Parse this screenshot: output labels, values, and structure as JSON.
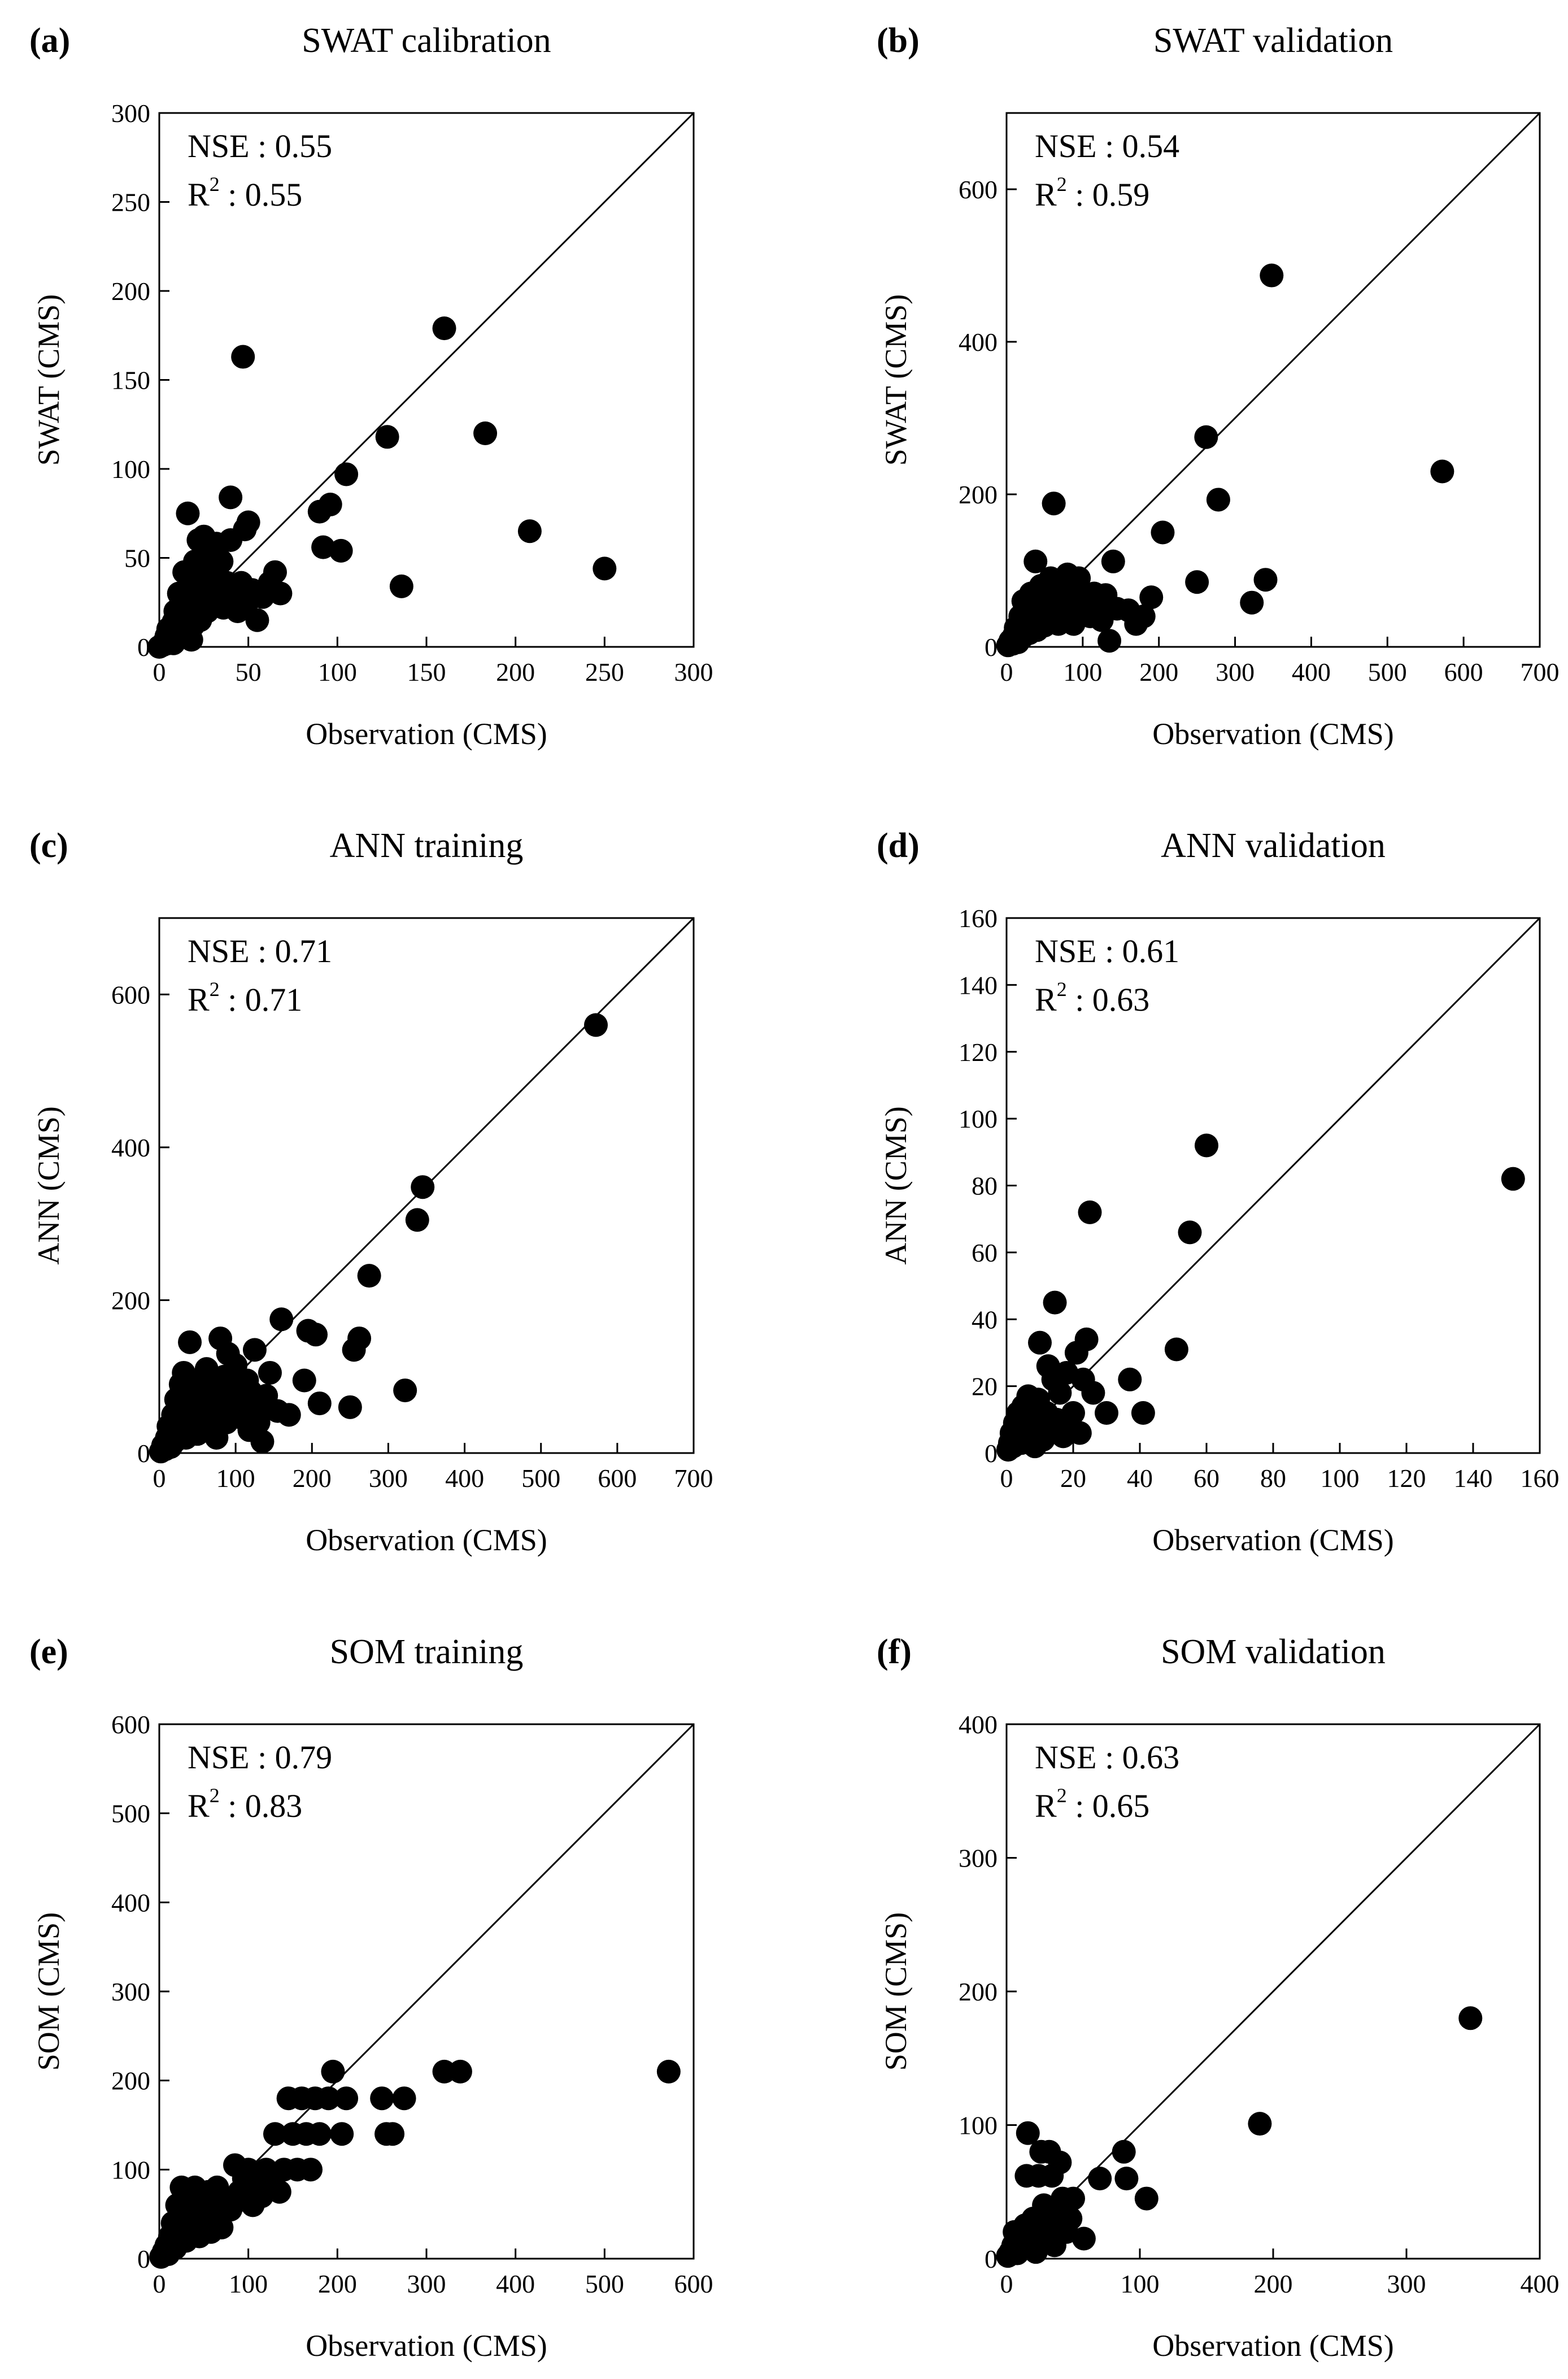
{
  "chart_data": [
    {
      "type": "scatter",
      "panel": "(a)",
      "title": "SWAT calibration",
      "xlabel": "Observation (CMS)",
      "ylabel": "SWAT (CMS)",
      "xlim": [
        0,
        300
      ],
      "ylim": [
        0,
        300
      ],
      "xticks": [
        0,
        50,
        100,
        150,
        200,
        250,
        300
      ],
      "yticks": [
        0,
        50,
        100,
        150,
        200,
        250,
        300
      ],
      "nse_label": "NSE : 0.55",
      "r2_prefix": "R",
      "r2_sup": "2",
      "r2_value": " : 0.55",
      "points": [
        [
          0,
          0
        ],
        [
          2,
          1
        ],
        [
          3,
          3
        ],
        [
          4,
          6
        ],
        [
          5,
          2
        ],
        [
          5,
          10
        ],
        [
          6,
          4
        ],
        [
          7,
          8
        ],
        [
          8,
          14
        ],
        [
          8,
          2
        ],
        [
          9,
          20
        ],
        [
          10,
          5
        ],
        [
          10,
          12
        ],
        [
          11,
          30
        ],
        [
          12,
          24
        ],
        [
          12,
          8
        ],
        [
          13,
          16
        ],
        [
          14,
          42
        ],
        [
          15,
          10
        ],
        [
          15,
          28
        ],
        [
          16,
          75
        ],
        [
          17,
          20
        ],
        [
          18,
          36
        ],
        [
          18,
          4
        ],
        [
          19,
          12
        ],
        [
          20,
          48
        ],
        [
          21,
          25
        ],
        [
          22,
          32
        ],
        [
          22,
          60
        ],
        [
          23,
          15
        ],
        [
          24,
          44
        ],
        [
          25,
          62
        ],
        [
          26,
          38
        ],
        [
          27,
          20
        ],
        [
          28,
          54
        ],
        [
          30,
          30
        ],
        [
          32,
          58
        ],
        [
          33,
          40
        ],
        [
          35,
          48
        ],
        [
          36,
          22
        ],
        [
          38,
          36
        ],
        [
          40,
          60
        ],
        [
          40,
          84
        ],
        [
          42,
          30
        ],
        [
          44,
          20
        ],
        [
          46,
          36
        ],
        [
          47,
          163
        ],
        [
          48,
          66
        ],
        [
          50,
          70
        ],
        [
          50,
          26
        ],
        [
          52,
          32
        ],
        [
          55,
          15
        ],
        [
          58,
          28
        ],
        [
          62,
          36
        ],
        [
          65,
          42
        ],
        [
          68,
          30
        ],
        [
          90,
          76
        ],
        [
          92,
          56
        ],
        [
          96,
          80
        ],
        [
          102,
          54
        ],
        [
          105,
          97
        ],
        [
          128,
          118
        ],
        [
          136,
          34
        ],
        [
          160,
          179
        ],
        [
          183,
          120
        ],
        [
          208,
          65
        ],
        [
          250,
          44
        ]
      ]
    },
    {
      "type": "scatter",
      "panel": "(b)",
      "title": "SWAT validation",
      "xlabel": "Observation (CMS)",
      "ylabel": "SWAT (CMS)",
      "xlim": [
        0,
        700
      ],
      "ylim": [
        0,
        700
      ],
      "xticks": [
        0,
        100,
        200,
        300,
        400,
        500,
        600,
        700
      ],
      "yticks": [
        0,
        200,
        400,
        600
      ],
      "nse_label": "NSE : 0.54",
      "r2_prefix": "R",
      "r2_sup": "2",
      "r2_value": " : 0.59",
      "points": [
        [
          2,
          2
        ],
        [
          5,
          8
        ],
        [
          8,
          4
        ],
        [
          10,
          15
        ],
        [
          12,
          25
        ],
        [
          15,
          6
        ],
        [
          18,
          40
        ],
        [
          20,
          12
        ],
        [
          22,
          60
        ],
        [
          25,
          30
        ],
        [
          28,
          50
        ],
        [
          30,
          18
        ],
        [
          32,
          70
        ],
        [
          35,
          35
        ],
        [
          38,
          112
        ],
        [
          40,
          22
        ],
        [
          42,
          55
        ],
        [
          45,
          80
        ],
        [
          48,
          40
        ],
        [
          50,
          28
        ],
        [
          55,
          60
        ],
        [
          58,
          90
        ],
        [
          60,
          45
        ],
        [
          62,
          188
        ],
        [
          65,
          70
        ],
        [
          68,
          30
        ],
        [
          70,
          85
        ],
        [
          72,
          55
        ],
        [
          75,
          40
        ],
        [
          80,
          95
        ],
        [
          82,
          65
        ],
        [
          85,
          50
        ],
        [
          88,
          30
        ],
        [
          90,
          75
        ],
        [
          95,
          90
        ],
        [
          100,
          60
        ],
        [
          105,
          45
        ],
        [
          110,
          40
        ],
        [
          115,
          70
        ],
        [
          120,
          55
        ],
        [
          125,
          35
        ],
        [
          130,
          68
        ],
        [
          135,
          8
        ],
        [
          140,
          112
        ],
        [
          145,
          50
        ],
        [
          160,
          48
        ],
        [
          170,
          30
        ],
        [
          180,
          40
        ],
        [
          190,
          65
        ],
        [
          205,
          150
        ],
        [
          250,
          85
        ],
        [
          262,
          275
        ],
        [
          278,
          193
        ],
        [
          322,
          58
        ],
        [
          340,
          88
        ],
        [
          348,
          487
        ],
        [
          572,
          230
        ]
      ]
    },
    {
      "type": "scatter",
      "panel": "(c)",
      "title": "ANN training",
      "xlabel": "Observation (CMS)",
      "ylabel": "ANN (CMS)",
      "xlim": [
        0,
        700
      ],
      "ylim": [
        0,
        700
      ],
      "xticks": [
        0,
        100,
        200,
        300,
        400,
        500,
        600,
        700
      ],
      "yticks": [
        0,
        200,
        400,
        600
      ],
      "nse_label": "NSE : 0.71",
      "r2_prefix": "R",
      "r2_sup": "2",
      "r2_value": " : 0.71",
      "points": [
        [
          2,
          2
        ],
        [
          5,
          10
        ],
        [
          8,
          5
        ],
        [
          10,
          20
        ],
        [
          12,
          35
        ],
        [
          15,
          8
        ],
        [
          18,
          50
        ],
        [
          20,
          15
        ],
        [
          22,
          70
        ],
        [
          25,
          30
        ],
        [
          28,
          90
        ],
        [
          30,
          45
        ],
        [
          32,
          105
        ],
        [
          35,
          20
        ],
        [
          38,
          60
        ],
        [
          40,
          145
        ],
        [
          42,
          35
        ],
        [
          45,
          80
        ],
        [
          48,
          50
        ],
        [
          50,
          25
        ],
        [
          55,
          95
        ],
        [
          58,
          65
        ],
        [
          60,
          40
        ],
        [
          62,
          110
        ],
        [
          65,
          75
        ],
        [
          68,
          30
        ],
        [
          70,
          55
        ],
        [
          72,
          90
        ],
        [
          75,
          20
        ],
        [
          80,
          150
        ],
        [
          82,
          60
        ],
        [
          85,
          100
        ],
        [
          88,
          40
        ],
        [
          90,
          130
        ],
        [
          92,
          85
        ],
        [
          95,
          70
        ],
        [
          98,
          50
        ],
        [
          100,
          115
        ],
        [
          105,
          60
        ],
        [
          110,
          45
        ],
        [
          115,
          95
        ],
        [
          118,
          30
        ],
        [
          120,
          80
        ],
        [
          125,
          135
        ],
        [
          128,
          60
        ],
        [
          130,
          40
        ],
        [
          135,
          15
        ],
        [
          140,
          75
        ],
        [
          145,
          105
        ],
        [
          155,
          55
        ],
        [
          160,
          175
        ],
        [
          170,
          50
        ],
        [
          190,
          95
        ],
        [
          195,
          160
        ],
        [
          205,
          155
        ],
        [
          210,
          65
        ],
        [
          250,
          60
        ],
        [
          255,
          135
        ],
        [
          262,
          150
        ],
        [
          275,
          232
        ],
        [
          322,
          82
        ],
        [
          338,
          305
        ],
        [
          345,
          348
        ],
        [
          572,
          560
        ]
      ]
    },
    {
      "type": "scatter",
      "panel": "(d)",
      "title": "ANN validation",
      "xlabel": "Observation (CMS)",
      "ylabel": "ANN (CMS)",
      "xlim": [
        0,
        160
      ],
      "ylim": [
        0,
        160
      ],
      "xticks": [
        0,
        20,
        40,
        60,
        80,
        100,
        120,
        140,
        160
      ],
      "yticks": [
        0,
        20,
        40,
        60,
        80,
        100,
        120,
        140,
        160
      ],
      "nse_label": "NSE : 0.61",
      "r2_prefix": "R",
      "r2_sup": "2",
      "r2_value": " : 0.63",
      "points": [
        [
          0.5,
          1
        ],
        [
          1,
          3
        ],
        [
          1.5,
          6
        ],
        [
          2,
          2
        ],
        [
          2.5,
          9
        ],
        [
          3,
          4
        ],
        [
          3.5,
          12
        ],
        [
          4,
          7
        ],
        [
          4.5,
          3
        ],
        [
          5,
          14
        ],
        [
          5.5,
          5
        ],
        [
          6,
          10
        ],
        [
          6.5,
          17
        ],
        [
          7,
          4
        ],
        [
          7.5,
          8
        ],
        [
          8,
          12
        ],
        [
          8.5,
          2
        ],
        [
          9,
          6
        ],
        [
          9.5,
          16
        ],
        [
          10,
          33
        ],
        [
          10.5,
          9
        ],
        [
          11,
          4
        ],
        [
          12,
          12
        ],
        [
          12.5,
          26
        ],
        [
          13,
          7
        ],
        [
          14,
          22
        ],
        [
          14.5,
          45
        ],
        [
          15,
          10
        ],
        [
          16,
          18
        ],
        [
          17,
          5
        ],
        [
          18,
          24
        ],
        [
          19,
          8
        ],
        [
          20,
          12
        ],
        [
          21,
          30
        ],
        [
          22,
          6
        ],
        [
          23,
          22
        ],
        [
          24,
          34
        ],
        [
          25,
          72
        ],
        [
          26,
          18
        ],
        [
          30,
          12
        ],
        [
          37,
          22
        ],
        [
          41,
          12
        ],
        [
          51,
          31
        ],
        [
          55,
          66
        ],
        [
          60,
          92
        ],
        [
          152,
          82
        ]
      ]
    },
    {
      "type": "scatter",
      "panel": "(e)",
      "title": "SOM training",
      "xlabel": "Observation (CMS)",
      "ylabel": "SOM (CMS)",
      "xlim": [
        0,
        600
      ],
      "ylim": [
        0,
        600
      ],
      "xticks": [
        0,
        100,
        200,
        300,
        400,
        500,
        600
      ],
      "yticks": [
        0,
        100,
        200,
        300,
        400,
        500,
        600
      ],
      "nse_label": "NSE : 0.79",
      "r2_prefix": "R",
      "r2_sup": "2",
      "r2_value": " : 0.83",
      "points": [
        [
          2,
          2
        ],
        [
          5,
          8
        ],
        [
          8,
          15
        ],
        [
          10,
          5
        ],
        [
          12,
          25
        ],
        [
          15,
          40
        ],
        [
          18,
          12
        ],
        [
          20,
          60
        ],
        [
          22,
          30
        ],
        [
          25,
          80
        ],
        [
          28,
          45
        ],
        [
          30,
          20
        ],
        [
          32,
          65
        ],
        [
          35,
          50
        ],
        [
          38,
          35
        ],
        [
          40,
          80
        ],
        [
          42,
          60
        ],
        [
          45,
          25
        ],
        [
          48,
          70
        ],
        [
          50,
          55
        ],
        [
          52,
          40
        ],
        [
          55,
          75
        ],
        [
          58,
          30
        ],
        [
          60,
          65
        ],
        [
          62,
          50
        ],
        [
          65,
          80
        ],
        [
          68,
          70
        ],
        [
          70,
          35
        ],
        [
          75,
          60
        ],
        [
          80,
          55
        ],
        [
          85,
          105
        ],
        [
          88,
          65
        ],
        [
          90,
          75
        ],
        [
          95,
          90
        ],
        [
          100,
          100
        ],
        [
          105,
          60
        ],
        [
          110,
          80
        ],
        [
          115,
          70
        ],
        [
          120,
          100
        ],
        [
          125,
          85
        ],
        [
          130,
          140
        ],
        [
          135,
          75
        ],
        [
          140,
          100
        ],
        [
          145,
          180
        ],
        [
          150,
          140
        ],
        [
          155,
          100
        ],
        [
          160,
          180
        ],
        [
          165,
          140
        ],
        [
          170,
          100
        ],
        [
          175,
          180
        ],
        [
          180,
          140
        ],
        [
          190,
          180
        ],
        [
          195,
          210
        ],
        [
          205,
          140
        ],
        [
          210,
          180
        ],
        [
          250,
          180
        ],
        [
          255,
          140
        ],
        [
          262,
          140
        ],
        [
          275,
          180
        ],
        [
          320,
          210
        ],
        [
          338,
          210
        ],
        [
          572,
          210
        ]
      ]
    },
    {
      "type": "scatter",
      "panel": "(f)",
      "title": "SOM validation",
      "xlabel": "Observation (CMS)",
      "ylabel": "SOM (CMS)",
      "xlim": [
        0,
        400
      ],
      "ylim": [
        0,
        400
      ],
      "xticks": [
        0,
        100,
        200,
        300,
        400
      ],
      "yticks": [
        0,
        100,
        200,
        300,
        400
      ],
      "nse_label": "NSE : 0.63",
      "r2_prefix": "R",
      "r2_sup": "2",
      "r2_value": " : 0.65",
      "points": [
        [
          1,
          2
        ],
        [
          3,
          5
        ],
        [
          5,
          10
        ],
        [
          6,
          20
        ],
        [
          8,
          4
        ],
        [
          10,
          15
        ],
        [
          12,
          8
        ],
        [
          14,
          25
        ],
        [
          15,
          62
        ],
        [
          16,
          94
        ],
        [
          18,
          12
        ],
        [
          20,
          30
        ],
        [
          22,
          5
        ],
        [
          24,
          62
        ],
        [
          25,
          18
        ],
        [
          26,
          80
        ],
        [
          28,
          40
        ],
        [
          30,
          25
        ],
        [
          32,
          80
        ],
        [
          34,
          62
        ],
        [
          36,
          10
        ],
        [
          38,
          30
        ],
        [
          40,
          72
        ],
        [
          42,
          45
        ],
        [
          45,
          20
        ],
        [
          48,
          30
        ],
        [
          50,
          45
        ],
        [
          58,
          15
        ],
        [
          70,
          60
        ],
        [
          88,
          80
        ],
        [
          90,
          60
        ],
        [
          105,
          45
        ],
        [
          190,
          101
        ],
        [
          348,
          180
        ]
      ]
    }
  ]
}
